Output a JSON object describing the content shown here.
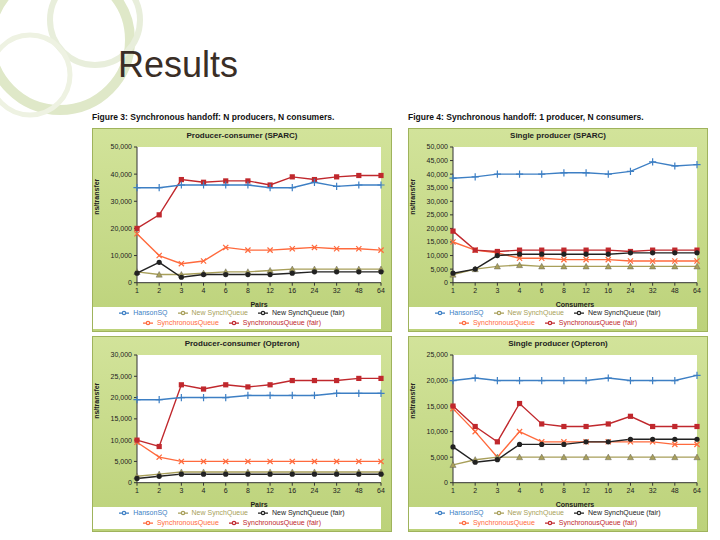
{
  "title": "Results",
  "captions": [
    "Figure 3: Synchronous handoff: N producers, N consumers.",
    "Figure 4: Synchronous handoff: 1 producer, N consumers."
  ],
  "chart_data": [
    {
      "type": "line",
      "title": "Producer-consumer (SPARC)",
      "x_label": "Pairs",
      "y_label": "ns/transfer",
      "grid": false,
      "legend": "bottom",
      "categories": [
        "1",
        "2",
        "3",
        "4",
        "6",
        "8",
        "12",
        "16",
        "24",
        "32",
        "48",
        "64"
      ],
      "ylim": [
        0,
        50000
      ],
      "yticks": [
        0,
        {
          "value": 10000,
          "label": "10,000"
        },
        {
          "value": 20000,
          "label": "20,000"
        },
        {
          "value": 30000,
          "label": "30,000"
        },
        {
          "value": 40000,
          "label": "40,000"
        },
        {
          "value": 50000,
          "label": "50,000"
        }
      ],
      "series": [
        {
          "name": "SynchronousQueue",
          "color": "#ff6a3d",
          "marker": "x",
          "values": [
            18000,
            10000,
            7000,
            8000,
            13000,
            12000,
            12000,
            12500,
            13000,
            12500,
            12500,
            12000
          ]
        },
        {
          "name": "SynchronousQueue (fair)",
          "color": "#c0282d",
          "marker": "square",
          "values": [
            20000,
            25000,
            38000,
            37000,
            37500,
            37500,
            36000,
            39000,
            38000,
            39000,
            39500,
            39500
          ]
        },
        {
          "name": "New SynchQueue",
          "color": "#a89f5a",
          "marker": "triangle",
          "values": [
            4000,
            3000,
            3000,
            3500,
            4000,
            4000,
            4500,
            5000,
            5000,
            5000,
            5000,
            5000
          ]
        },
        {
          "name": "New SynchQueue (fair)",
          "color": "#222222",
          "marker": "circle",
          "values": [
            3500,
            7500,
            2000,
            3000,
            3000,
            3000,
            3000,
            3500,
            4000,
            4000,
            4000,
            4000
          ]
        },
        {
          "name": "HansonSQ",
          "color": "#3d7fc4",
          "marker": "plus",
          "values": [
            35000,
            35000,
            36000,
            36000,
            36000,
            36000,
            35000,
            35000,
            37000,
            35500,
            36000,
            36000
          ]
        }
      ]
    },
    {
      "type": "line",
      "title": "Single producer (SPARC)",
      "x_label": "Consumers",
      "y_label": "ns/transfer",
      "grid": false,
      "legend": "bottom",
      "categories": [
        "1",
        "2",
        "3",
        "4",
        "6",
        "8",
        "12",
        "16",
        "24",
        "32",
        "48",
        "64"
      ],
      "ylim": [
        0,
        50000
      ],
      "yticks": [
        0,
        {
          "value": 5000,
          "label": "5,000"
        },
        {
          "value": 10000,
          "label": "10,000"
        },
        {
          "value": 15000,
          "label": "15,000"
        },
        {
          "value": 20000,
          "label": "20,000"
        },
        {
          "value": 25000,
          "label": "25,000"
        },
        {
          "value": 30000,
          "label": "30,000"
        },
        {
          "value": 35000,
          "label": "35,000"
        },
        {
          "value": 40000,
          "label": "40,000"
        },
        {
          "value": 45000,
          "label": "45,000"
        },
        {
          "value": 50000,
          "label": "50,000"
        }
      ],
      "series": [
        {
          "name": "SynchronousQueue",
          "color": "#ff6a3d",
          "marker": "x",
          "values": [
            15000,
            12000,
            11000,
            9000,
            9000,
            8500,
            8500,
            8500,
            8000,
            8000,
            8000,
            8000
          ]
        },
        {
          "name": "SynchronousQueue (fair)",
          "color": "#c0282d",
          "marker": "square",
          "values": [
            19000,
            12000,
            11500,
            12000,
            12000,
            12000,
            12000,
            12000,
            11500,
            12000,
            12000,
            12000
          ]
        },
        {
          "name": "New SynchQueue",
          "color": "#a89f5a",
          "marker": "triangle",
          "values": [
            3000,
            5000,
            6000,
            6500,
            6000,
            6000,
            6000,
            6000,
            6000,
            6000,
            6000,
            6000
          ]
        },
        {
          "name": "New SynchQueue (fair)",
          "color": "#222222",
          "marker": "circle",
          "values": [
            3500,
            5000,
            10000,
            10500,
            10500,
            10500,
            10500,
            10500,
            11000,
            11000,
            11000,
            11000
          ]
        },
        {
          "name": "HansonSQ",
          "color": "#3d7fc4",
          "marker": "plus",
          "values": [
            38500,
            39000,
            40000,
            40000,
            40000,
            40500,
            40500,
            40000,
            41000,
            44500,
            43000,
            43500
          ]
        }
      ]
    },
    {
      "type": "line",
      "title": "Producer-consumer (Opteron)",
      "x_label": "Pairs",
      "y_label": "ns/transfer",
      "grid": false,
      "legend": "bottom",
      "categories": [
        "1",
        "2",
        "3",
        "4",
        "6",
        "8",
        "12",
        "16",
        "24",
        "32",
        "48",
        "64"
      ],
      "ylim": [
        0,
        30000
      ],
      "yticks": [
        0,
        {
          "value": 5000,
          "label": "5,000"
        },
        {
          "value": 10000,
          "label": "10,000"
        },
        {
          "value": 15000,
          "label": "15,000"
        },
        {
          "value": 20000,
          "label": "20,000"
        },
        {
          "value": 25000,
          "label": "25,000"
        },
        {
          "value": 30000,
          "label": "30,000"
        }
      ],
      "series": [
        {
          "name": "SynchronousQueue",
          "color": "#ff6a3d",
          "marker": "x",
          "values": [
            9500,
            6000,
            5000,
            5000,
            5000,
            5000,
            5000,
            5000,
            5000,
            5000,
            5000,
            5000
          ]
        },
        {
          "name": "SynchronousQueue (fair)",
          "color": "#c0282d",
          "marker": "square",
          "values": [
            10000,
            8500,
            23000,
            22000,
            23000,
            22500,
            23000,
            24000,
            24000,
            24000,
            24500,
            24500
          ]
        },
        {
          "name": "New SynchQueue",
          "color": "#a89f5a",
          "marker": "triangle",
          "values": [
            1500,
            2000,
            2500,
            2500,
            2500,
            2500,
            2500,
            2500,
            2500,
            2500,
            2500,
            2500
          ]
        },
        {
          "name": "New SynchQueue (fair)",
          "color": "#222222",
          "marker": "circle",
          "values": [
            1000,
            1500,
            2000,
            2000,
            2000,
            2000,
            2000,
            2000,
            2000,
            2000,
            2000,
            2000
          ]
        },
        {
          "name": "HansonSQ",
          "color": "#3d7fc4",
          "marker": "plus",
          "values": [
            19500,
            19500,
            20000,
            20000,
            20000,
            20500,
            20500,
            20500,
            20500,
            21000,
            21000,
            21000
          ]
        }
      ]
    },
    {
      "type": "line",
      "title": "Single producer (Opteron)",
      "x_label": "Consumers",
      "y_label": "ns/transfer",
      "grid": false,
      "legend": "bottom",
      "categories": [
        "1",
        "2",
        "3",
        "4",
        "6",
        "8",
        "12",
        "16",
        "24",
        "32",
        "48",
        "64"
      ],
      "ylim": [
        0,
        25000
      ],
      "yticks": [
        0,
        {
          "value": 5000,
          "label": "5,000"
        },
        {
          "value": 10000,
          "label": "10,000"
        },
        {
          "value": 15000,
          "label": "15,000"
        },
        {
          "value": 20000,
          "label": "20,000"
        },
        {
          "value": 25000,
          "label": "25,000"
        }
      ],
      "series": [
        {
          "name": "SynchronousQueue",
          "color": "#ff6a3d",
          "marker": "x",
          "values": [
            14500,
            10000,
            5000,
            10000,
            8000,
            8000,
            8000,
            8000,
            8000,
            8000,
            7500,
            7500
          ]
        },
        {
          "name": "SynchronousQueue (fair)",
          "color": "#c0282d",
          "marker": "square",
          "values": [
            15000,
            11000,
            8000,
            15500,
            11500,
            11000,
            11000,
            11500,
            13000,
            11000,
            11000,
            11000
          ]
        },
        {
          "name": "New SynchQueue",
          "color": "#a89f5a",
          "marker": "triangle",
          "values": [
            3500,
            4500,
            5000,
            5000,
            5000,
            5000,
            5000,
            5000,
            5000,
            5000,
            5000,
            5000
          ]
        },
        {
          "name": "New SynchQueue (fair)",
          "color": "#222222",
          "marker": "circle",
          "values": [
            7000,
            4000,
            4500,
            7500,
            7500,
            7500,
            8000,
            8000,
            8500,
            8500,
            8500,
            8500
          ]
        },
        {
          "name": "HansonSQ",
          "color": "#3d7fc4",
          "marker": "plus",
          "values": [
            20000,
            20500,
            20000,
            20000,
            20000,
            20000,
            20000,
            20500,
            20000,
            20000,
            20000,
            21000
          ]
        }
      ]
    }
  ]
}
